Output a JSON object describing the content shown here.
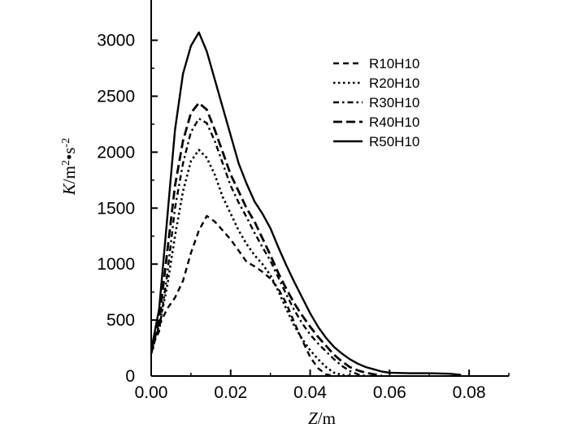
{
  "chart_data": {
    "type": "line",
    "xlabel": "Z/m",
    "ylabel": "K/m2•s-2",
    "xlabel_parts": {
      "var": "Z",
      "unit": "/m"
    },
    "ylabel_parts": {
      "var": "K",
      "unit_a": "/m",
      "exp_a": "2",
      "dot": "•",
      "unit_b": "s",
      "exp_b": "-2"
    },
    "xlim": [
      0,
      0.09
    ],
    "ylim": [
      0,
      3200
    ],
    "x_ticks": [
      0.0,
      0.02,
      0.04,
      0.06,
      0.08
    ],
    "x_tick_labels": [
      "0.00",
      "0.02",
      "0.04",
      "0.06",
      "0.08"
    ],
    "y_ticks": [
      0,
      500,
      1000,
      1500,
      2000,
      2500,
      3000
    ],
    "y_tick_labels": [
      "0",
      "500",
      "1000",
      "1500",
      "2000",
      "2500",
      "3000"
    ],
    "grid": false,
    "legend_position": "top-right",
    "series": [
      {
        "name": "R10H10",
        "style": "dash",
        "x": [
          0,
          0.002,
          0.004,
          0.006,
          0.008,
          0.01,
          0.012,
          0.014,
          0.016,
          0.018,
          0.02,
          0.022,
          0.024,
          0.026,
          0.028,
          0.03,
          0.032,
          0.034,
          0.036,
          0.038,
          0.04,
          0.042,
          0.044,
          0.046
        ],
        "values": [
          200,
          450,
          600,
          700,
          850,
          1100,
          1300,
          1430,
          1380,
          1300,
          1220,
          1120,
          1020,
          980,
          930,
          870,
          780,
          650,
          480,
          320,
          170,
          70,
          15,
          0
        ]
      },
      {
        "name": "R20H10",
        "style": "dot",
        "x": [
          0,
          0.002,
          0.004,
          0.006,
          0.008,
          0.01,
          0.012,
          0.014,
          0.016,
          0.018,
          0.02,
          0.022,
          0.024,
          0.026,
          0.028,
          0.03,
          0.032,
          0.034,
          0.036,
          0.038,
          0.04,
          0.042,
          0.044,
          0.046,
          0.048,
          0.05
        ],
        "values": [
          250,
          450,
          800,
          1250,
          1650,
          1920,
          2020,
          1950,
          1800,
          1600,
          1450,
          1300,
          1180,
          1080,
          1000,
          900,
          760,
          600,
          450,
          330,
          230,
          150,
          80,
          30,
          10,
          0
        ]
      },
      {
        "name": "R30H10",
        "style": "dashdot",
        "x": [
          0,
          0.002,
          0.004,
          0.006,
          0.008,
          0.01,
          0.012,
          0.014,
          0.016,
          0.018,
          0.02,
          0.022,
          0.024,
          0.026,
          0.028,
          0.03,
          0.032,
          0.034,
          0.036,
          0.038,
          0.04,
          0.042,
          0.044,
          0.046,
          0.048,
          0.05,
          0.052,
          0.054
        ],
        "values": [
          250,
          400,
          900,
          1500,
          1900,
          2180,
          2300,
          2260,
          2100,
          1900,
          1700,
          1550,
          1420,
          1280,
          1150,
          1030,
          880,
          730,
          590,
          470,
          370,
          290,
          220,
          150,
          90,
          45,
          15,
          0
        ]
      },
      {
        "name": "R40H10",
        "style": "longdash",
        "x": [
          0,
          0.002,
          0.004,
          0.006,
          0.008,
          0.01,
          0.012,
          0.014,
          0.016,
          0.018,
          0.02,
          0.022,
          0.024,
          0.026,
          0.028,
          0.03,
          0.032,
          0.034,
          0.036,
          0.038,
          0.04,
          0.042,
          0.044,
          0.046,
          0.048,
          0.05,
          0.052,
          0.054,
          0.056,
          0.058
        ],
        "values": [
          200,
          500,
          1100,
          1700,
          2100,
          2350,
          2440,
          2380,
          2200,
          2000,
          1800,
          1650,
          1500,
          1380,
          1230,
          1080,
          920,
          780,
          650,
          540,
          440,
          350,
          270,
          190,
          130,
          80,
          50,
          30,
          15,
          5
        ]
      },
      {
        "name": "R50H10",
        "style": "solid",
        "x": [
          0,
          0.002,
          0.004,
          0.006,
          0.008,
          0.01,
          0.012,
          0.014,
          0.016,
          0.018,
          0.02,
          0.022,
          0.024,
          0.026,
          0.028,
          0.03,
          0.032,
          0.034,
          0.036,
          0.038,
          0.04,
          0.042,
          0.044,
          0.046,
          0.048,
          0.05,
          0.052,
          0.054,
          0.056,
          0.058,
          0.06,
          0.065,
          0.07,
          0.075,
          0.078
        ],
        "values": [
          230,
          600,
          1400,
          2200,
          2700,
          2950,
          3070,
          2900,
          2650,
          2400,
          2150,
          1900,
          1720,
          1560,
          1450,
          1320,
          1150,
          990,
          840,
          700,
          560,
          440,
          340,
          260,
          200,
          150,
          110,
          80,
          60,
          40,
          30,
          25,
          25,
          20,
          10
        ]
      }
    ]
  }
}
